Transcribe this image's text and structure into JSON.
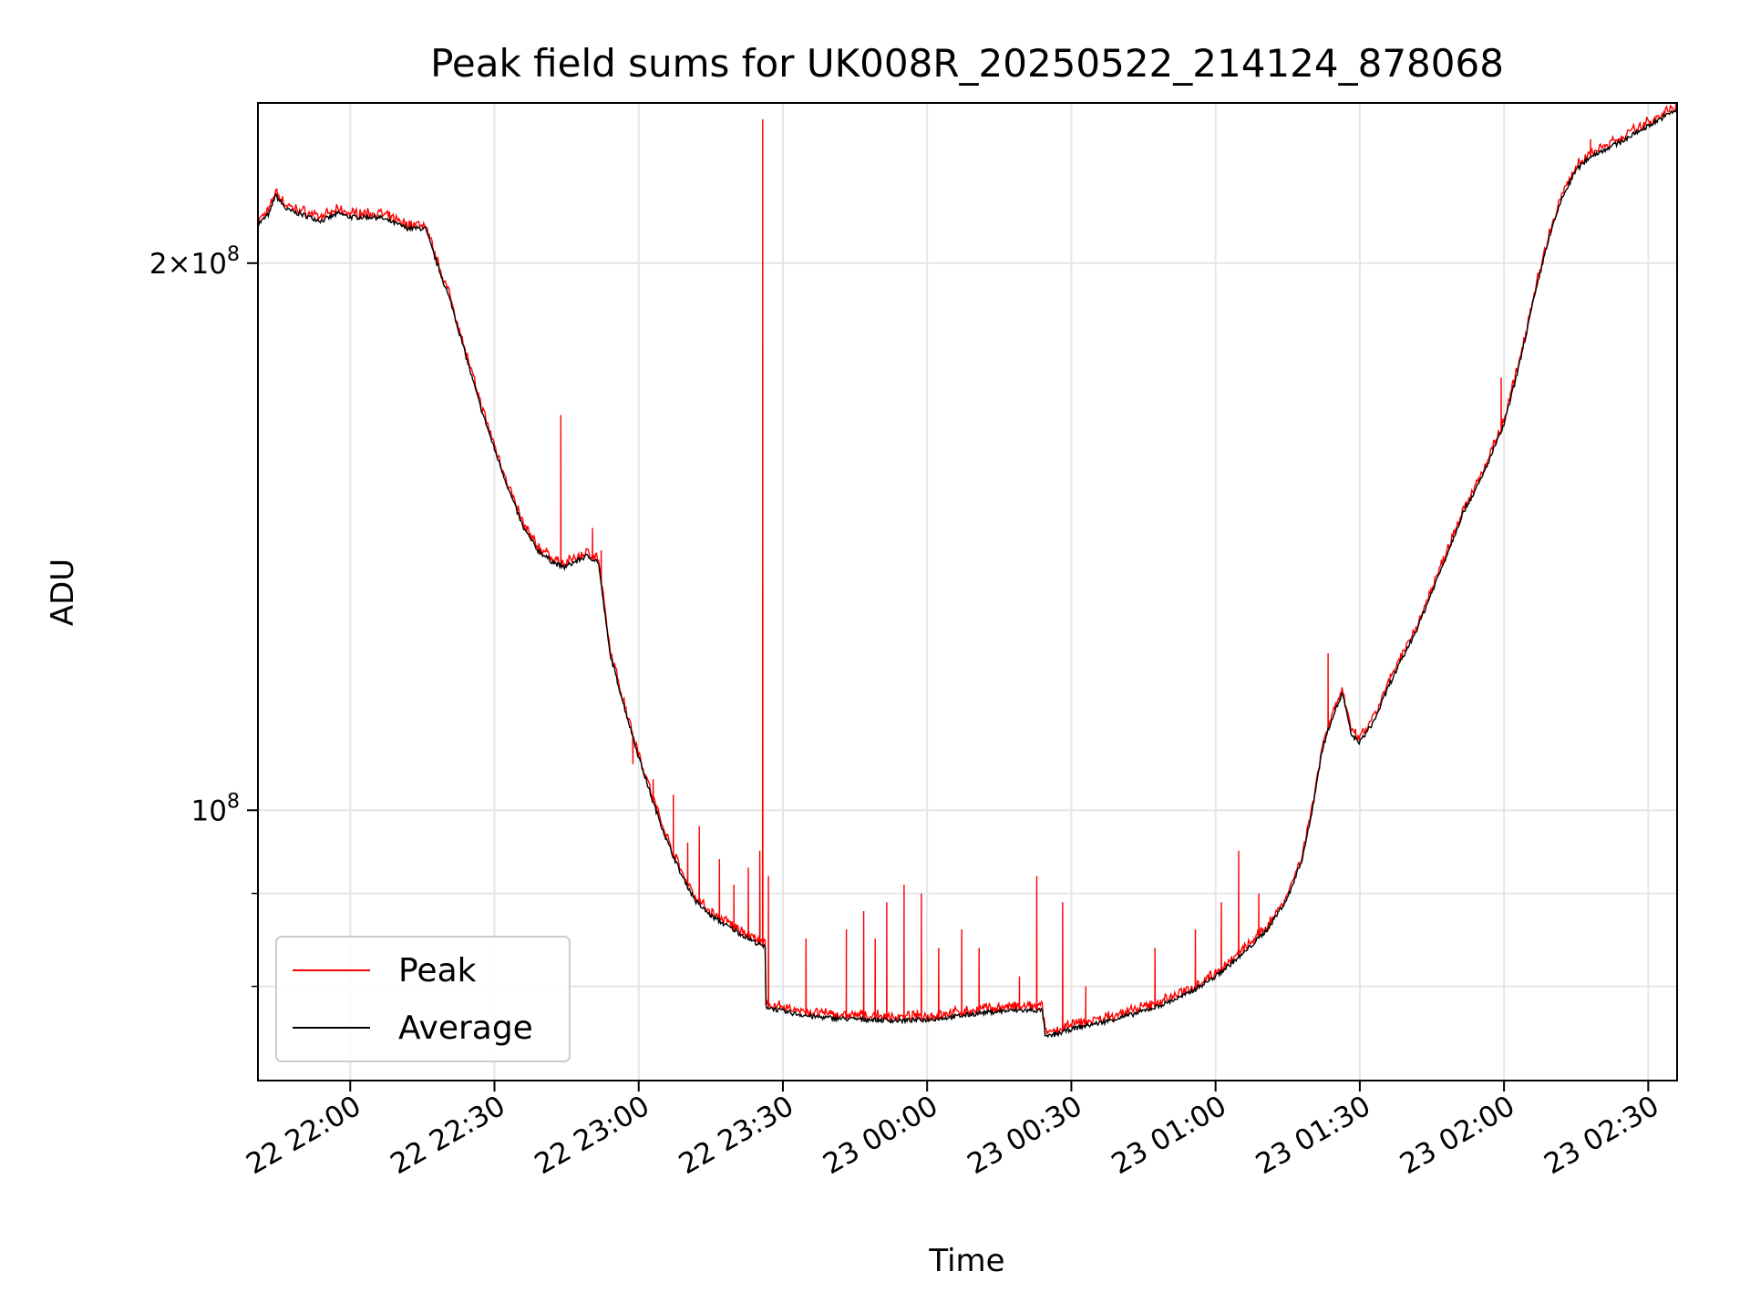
{
  "chart_data": {
    "type": "line",
    "title": "Peak field sums for UK008R_20250522_214124_878068",
    "xlabel": "Time",
    "ylabel": "ADU",
    "yscale": "log",
    "grid": true,
    "legend_position": "lower-left",
    "x_range_hours": [
      21.68,
      26.6
    ],
    "ylim": [
      71000000,
      245000000
    ],
    "x_ticks": [
      {
        "value": 22.0,
        "label": "22 22:00"
      },
      {
        "value": 22.5,
        "label": "22 22:30"
      },
      {
        "value": 23.0,
        "label": "22 23:00"
      },
      {
        "value": 23.5,
        "label": "22 23:30"
      },
      {
        "value": 24.0,
        "label": "23 00:00"
      },
      {
        "value": 24.5,
        "label": "23 00:30"
      },
      {
        "value": 25.0,
        "label": "23 01:00"
      },
      {
        "value": 25.5,
        "label": "23 01:30"
      },
      {
        "value": 26.0,
        "label": "23 02:00"
      },
      {
        "value": 26.5,
        "label": "23 02:30"
      }
    ],
    "y_major_ticks": [
      {
        "value": 100000000,
        "base": "10",
        "exp": "8",
        "mult": ""
      },
      {
        "value": 200000000,
        "base": "10",
        "exp": "8",
        "mult": "2"
      }
    ],
    "y_minor_ticks": [
      80000000,
      90000000
    ],
    "average_key": [
      [
        21.68,
        210000000
      ],
      [
        21.72,
        213000000
      ],
      [
        21.74,
        218000000
      ],
      [
        21.78,
        214000000
      ],
      [
        21.82,
        213000000
      ],
      [
        21.9,
        211000000
      ],
      [
        21.96,
        213000000
      ],
      [
        22.0,
        212000000
      ],
      [
        22.1,
        212000000
      ],
      [
        22.2,
        209000000
      ],
      [
        22.26,
        209000000
      ],
      [
        22.3,
        200000000
      ],
      [
        22.35,
        190000000
      ],
      [
        22.4,
        178000000
      ],
      [
        22.45,
        167000000
      ],
      [
        22.5,
        158000000
      ],
      [
        22.55,
        150000000
      ],
      [
        22.6,
        143000000
      ],
      [
        22.65,
        139000000
      ],
      [
        22.7,
        137000000
      ],
      [
        22.74,
        136000000
      ],
      [
        22.78,
        137000000
      ],
      [
        22.82,
        138000000
      ],
      [
        22.86,
        137000000
      ],
      [
        22.9,
        122000000
      ],
      [
        22.95,
        114000000
      ],
      [
        23.0,
        107000000
      ],
      [
        23.05,
        101000000
      ],
      [
        23.1,
        96000000
      ],
      [
        23.15,
        92000000
      ],
      [
        23.2,
        89000000
      ],
      [
        23.25,
        87500000
      ],
      [
        23.3,
        86500000
      ],
      [
        23.38,
        85000000
      ],
      [
        23.44,
        84000000
      ],
      [
        23.44,
        78000000
      ],
      [
        23.5,
        77500000
      ],
      [
        23.6,
        77000000
      ],
      [
        23.7,
        76800000
      ],
      [
        23.8,
        76700000
      ],
      [
        23.9,
        76600000
      ],
      [
        24.0,
        76700000
      ],
      [
        24.1,
        77000000
      ],
      [
        24.2,
        77400000
      ],
      [
        24.3,
        77600000
      ],
      [
        24.4,
        77600000
      ],
      [
        24.41,
        75000000
      ],
      [
        24.45,
        75300000
      ],
      [
        24.5,
        75800000
      ],
      [
        24.6,
        76400000
      ],
      [
        24.7,
        77100000
      ],
      [
        24.8,
        78000000
      ],
      [
        24.9,
        79200000
      ],
      [
        25.0,
        81000000
      ],
      [
        25.1,
        83500000
      ],
      [
        25.18,
        86000000
      ],
      [
        25.25,
        89500000
      ],
      [
        25.3,
        94000000
      ],
      [
        25.33,
        99000000
      ],
      [
        25.37,
        108000000
      ],
      [
        25.4,
        112000000
      ],
      [
        25.44,
        116000000
      ],
      [
        25.47,
        110000000
      ],
      [
        25.5,
        109000000
      ],
      [
        25.55,
        112000000
      ],
      [
        25.6,
        117000000
      ],
      [
        25.7,
        126000000
      ],
      [
        25.8,
        138000000
      ],
      [
        25.86,
        146000000
      ],
      [
        25.92,
        152000000
      ],
      [
        26.0,
        163000000
      ],
      [
        26.05,
        175000000
      ],
      [
        26.1,
        190000000
      ],
      [
        26.15,
        205000000
      ],
      [
        26.2,
        217000000
      ],
      [
        26.25,
        225000000
      ],
      [
        26.3,
        229000000
      ],
      [
        26.4,
        233000000
      ],
      [
        26.5,
        238000000
      ],
      [
        26.6,
        243000000
      ]
    ],
    "peak_spikes": [
      [
        22.73,
        165000000
      ],
      [
        22.84,
        143000000
      ],
      [
        22.87,
        139000000
      ],
      [
        22.98,
        106000000
      ],
      [
        23.05,
        104000000
      ],
      [
        23.12,
        102000000
      ],
      [
        23.17,
        96000000
      ],
      [
        23.21,
        98000000
      ],
      [
        23.28,
        94000000
      ],
      [
        23.33,
        91000000
      ],
      [
        23.38,
        93000000
      ],
      [
        23.42,
        95000000
      ],
      [
        23.43,
        240000000
      ],
      [
        23.45,
        92000000
      ],
      [
        23.58,
        85000000
      ],
      [
        23.72,
        86000000
      ],
      [
        23.78,
        88000000
      ],
      [
        23.82,
        85000000
      ],
      [
        23.86,
        89000000
      ],
      [
        23.92,
        91000000
      ],
      [
        23.98,
        90000000
      ],
      [
        24.04,
        84000000
      ],
      [
        24.12,
        86000000
      ],
      [
        24.18,
        84000000
      ],
      [
        24.32,
        81000000
      ],
      [
        24.38,
        92000000
      ],
      [
        24.47,
        89000000
      ],
      [
        24.55,
        80000000
      ],
      [
        24.79,
        84000000
      ],
      [
        24.93,
        86000000
      ],
      [
        25.02,
        89000000
      ],
      [
        25.08,
        95000000
      ],
      [
        25.15,
        90000000
      ],
      [
        25.39,
        122000000
      ],
      [
        25.99,
        173000000
      ],
      [
        26.3,
        234000000
      ]
    ],
    "legend": [
      {
        "label": "Peak",
        "color": "#ff0000"
      },
      {
        "label": "Average",
        "color": "#000000"
      }
    ]
  }
}
